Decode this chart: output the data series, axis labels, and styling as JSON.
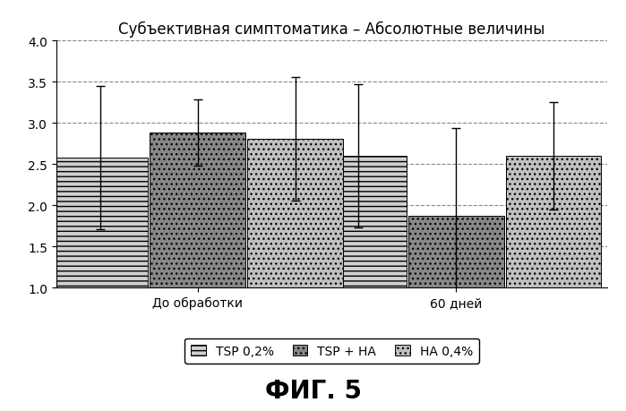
{
  "title": "Субъективная симптоматика – Абсолютные величины",
  "groups": [
    "До обработки",
    "60 дней"
  ],
  "series_labels": [
    "TSP 0,2%",
    "TSP + HA",
    "HA 0,4%"
  ],
  "values": [
    [
      2.58,
      2.88,
      2.8
    ],
    [
      2.6,
      1.87,
      2.6
    ]
  ],
  "errors": [
    [
      0.87,
      0.4,
      0.75
    ],
    [
      0.87,
      1.07,
      0.65
    ]
  ],
  "ylim": [
    1.0,
    4.0
  ],
  "ymin": 1.0,
  "yticks": [
    1.0,
    1.5,
    2.0,
    2.5,
    3.0,
    3.5,
    4.0
  ],
  "grid_ticks": [
    1.5,
    2.0,
    2.5,
    3.0,
    3.5
  ],
  "bar_width": 0.2,
  "group_positions": [
    0.32,
    0.85
  ],
  "figure_caption": "ФИГ. 5",
  "bg_color": "#ffffff",
  "bar_colors": [
    "#c8c8c8",
    "#707070",
    "#b8b8b8"
  ],
  "hatch_patterns": [
    "-----",
    "//////",
    "-----"
  ],
  "title_fontsize": 12,
  "tick_fontsize": 10,
  "legend_fontsize": 10,
  "caption_fontsize": 20
}
